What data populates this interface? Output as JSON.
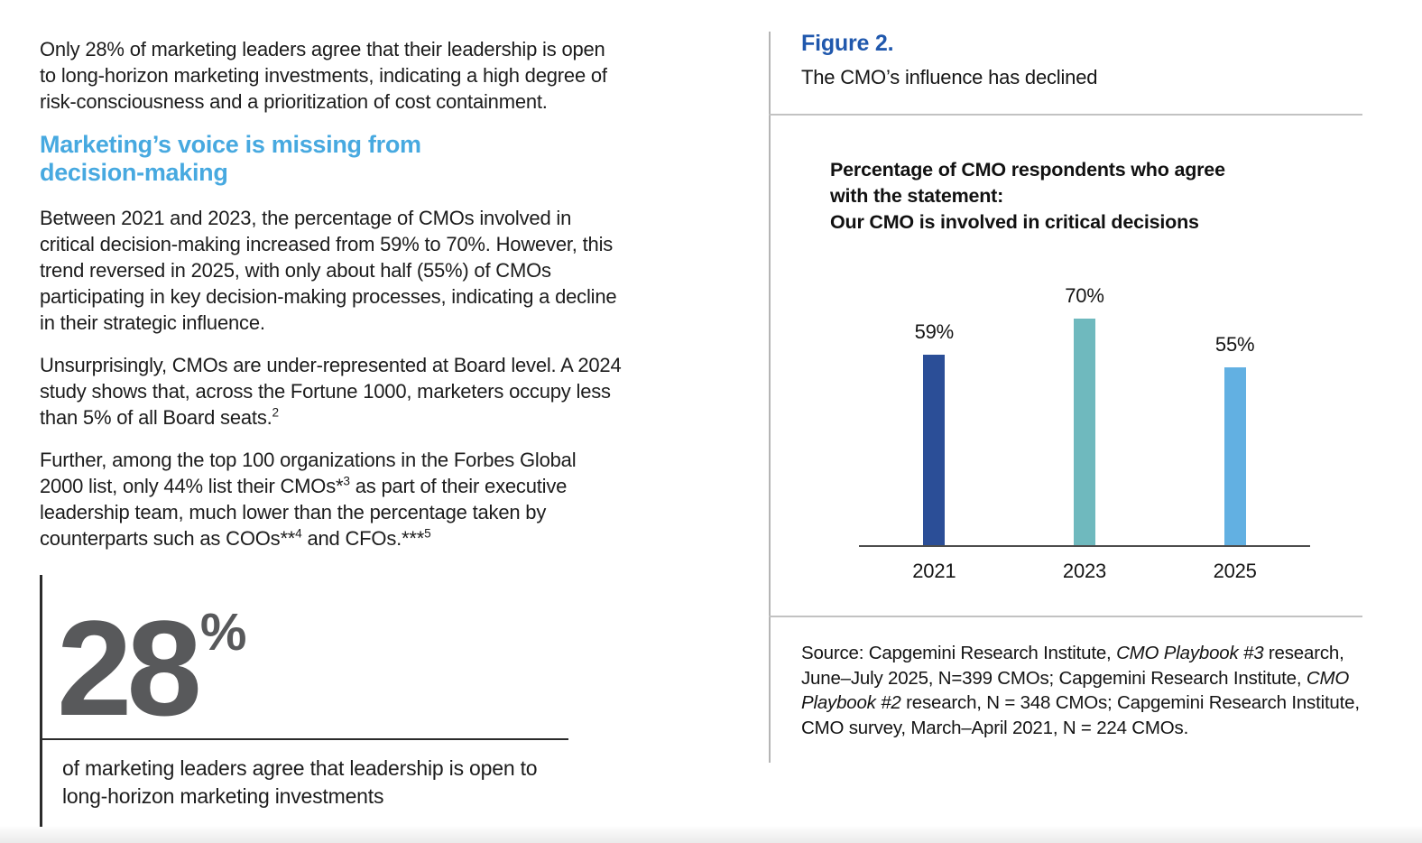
{
  "left": {
    "intro": "Only 28% of marketing leaders agree that their leadership is open to long-horizon marketing investments, indicating a high degree of risk-consciousness and a prioritization of cost containment.",
    "heading_lines": [
      "Marketing’s voice is missing from",
      "decision-making"
    ],
    "para_decisions": "Between 2021 and 2023, the percentage of CMOs involved in critical decision-making increased from 59% to 70%. However, this trend reversed in 2025, with only about half (55%) of CMOs participating in key decision-making processes, indicating a decline in their strategic influence.",
    "para_board": {
      "parts": [
        "Unsurprisingly, CMOs are under-represented at Board level. A 2024 study shows that, across the Fortune 1000, marketers occupy less than 5% of all Board seats.",
        "2"
      ]
    },
    "para_forbes": {
      "parts": [
        "Further, among the top 100 organizations in the Forbes Global 2000 list, only 44% list their CMOs*",
        "3",
        " as part of their executive leadership team, much lower than the percentage taken by counterparts such as COOs**",
        "4",
        " and CFOs.***",
        "5"
      ]
    },
    "stat": {
      "value": "28",
      "unit": "%",
      "caption": "of marketing leaders agree that leadership is open to long-horizon marketing investments"
    }
  },
  "figure": {
    "label": "Figure 2.",
    "subtitle": "The CMO’s influence has declined",
    "title_lines": [
      "Percentage of CMO respondents who agree",
      "with the statement:",
      "Our CMO is involved in critical decisions"
    ],
    "source_parts": [
      "Source: Capgemini Research Institute, ",
      "CMO Playbook #3",
      " research, June–July 2025, N=399 CMOs; Capgemini Research Institute, ",
      "CMO Playbook #2",
      " research, N = 348 CMOs; Capgemini Research Institute, CMO survey, March–April 2021, N = 224 CMOs."
    ]
  },
  "chart_data": {
    "type": "bar",
    "title": "Percentage of CMO respondents who agree with the statement: Our CMO is involved in critical decisions",
    "categories": [
      "2021",
      "2023",
      "2025"
    ],
    "values": [
      59,
      70,
      55
    ],
    "data_labels": [
      "59%",
      "70%",
      "55%"
    ],
    "bar_colors": [
      "#2b4e97",
      "#6fb9be",
      "#62b0e2"
    ],
    "xlabel": "",
    "ylabel": "",
    "ylim": [
      0,
      100
    ],
    "grid": false,
    "legend": "none",
    "axis_style": "x-baseline-only",
    "data_label_position": "above-bars"
  },
  "colors": {
    "heading_blue": "#47a9e0",
    "figure_label_blue": "#2058ad",
    "stat_gray": "#58595b",
    "bar_2021": "#2b4e97",
    "bar_2023": "#6fb9be",
    "bar_2025": "#62b0e2"
  }
}
